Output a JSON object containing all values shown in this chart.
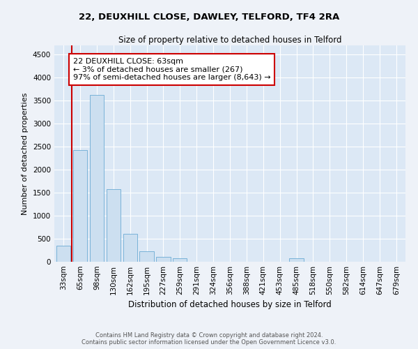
{
  "title": "22, DEUXHILL CLOSE, DAWLEY, TELFORD, TF4 2RA",
  "subtitle": "Size of property relative to detached houses in Telford",
  "xlabel": "Distribution of detached houses by size in Telford",
  "ylabel": "Number of detached properties",
  "categories": [
    "33sqm",
    "65sqm",
    "98sqm",
    "130sqm",
    "162sqm",
    "195sqm",
    "227sqm",
    "259sqm",
    "291sqm",
    "324sqm",
    "356sqm",
    "388sqm",
    "421sqm",
    "453sqm",
    "485sqm",
    "518sqm",
    "550sqm",
    "582sqm",
    "614sqm",
    "647sqm",
    "679sqm"
  ],
  "values": [
    350,
    2420,
    3620,
    1580,
    600,
    230,
    110,
    70,
    0,
    0,
    0,
    0,
    0,
    0,
    70,
    0,
    0,
    0,
    0,
    0,
    0
  ],
  "bar_color": "#ccdff0",
  "bar_edge_color": "#6aaad4",
  "vline_color": "#cc0000",
  "vline_index": 0.5,
  "annotation_text": "22 DEUXHILL CLOSE: 63sqm\n← 3% of detached houses are smaller (267)\n97% of semi-detached houses are larger (8,643) →",
  "anno_box_fc": "#ffffff",
  "anno_box_ec": "#cc0000",
  "ylim": [
    0,
    4700
  ],
  "yticks": [
    0,
    500,
    1000,
    1500,
    2000,
    2500,
    3000,
    3500,
    4000,
    4500
  ],
  "fig_bg": "#eef2f8",
  "plot_bg": "#dce8f5",
  "footer_line1": "Contains HM Land Registry data © Crown copyright and database right 2024.",
  "footer_line2": "Contains public sector information licensed under the Open Government Licence v3.0.",
  "title_fontsize": 9.5,
  "subtitle_fontsize": 8.5,
  "xlabel_fontsize": 8.5,
  "ylabel_fontsize": 8,
  "tick_fontsize": 7.5,
  "anno_fontsize": 8,
  "footer_fontsize": 6
}
